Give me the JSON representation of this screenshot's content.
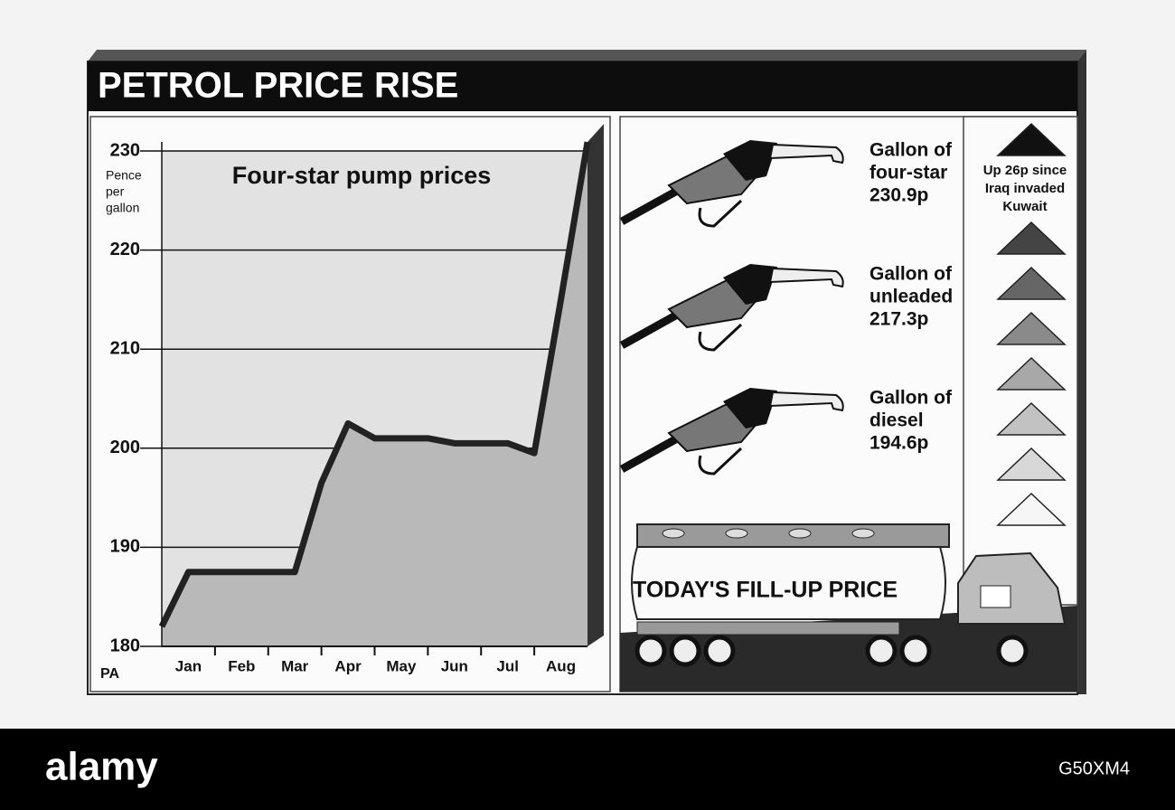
{
  "chart_data": {
    "type": "area",
    "title": "PETROL PRICE RISE",
    "subtitle": "Four-star pump prices",
    "y_label": [
      "Pence",
      "per",
      "gallon"
    ],
    "source": "PA",
    "categories": [
      null,
      "Jan",
      null,
      "Feb",
      null,
      "Mar",
      null,
      "Apr",
      null,
      "May",
      null,
      "Jun",
      null,
      "Jul",
      null,
      "Aug",
      null
    ],
    "values": [
      182,
      187.5,
      187.5,
      187.5,
      187.5,
      187.5,
      196.5,
      202.5,
      201,
      201,
      201,
      200.5,
      200.5,
      200.5,
      199.5,
      215,
      230.9
    ],
    "ylim": [
      180,
      230
    ],
    "yticks": [
      180,
      190,
      200,
      210,
      220,
      230
    ],
    "grid": true,
    "color": "#b9b9b9"
  },
  "panel": {
    "prices": [
      [
        "Gallon of",
        "four-star",
        "230.9p"
      ],
      [
        "Gallon of",
        "unleaded",
        "217.3p"
      ],
      [
        "Gallon of",
        "diesel",
        "194.6p"
      ]
    ],
    "note": [
      "Up 26p since",
      "Iraq invaded",
      "Kuwait"
    ],
    "tanker": "TODAY'S FILL-UP PRICE"
  },
  "footer": {
    "brand": "alamy",
    "code": "G50XM4"
  }
}
